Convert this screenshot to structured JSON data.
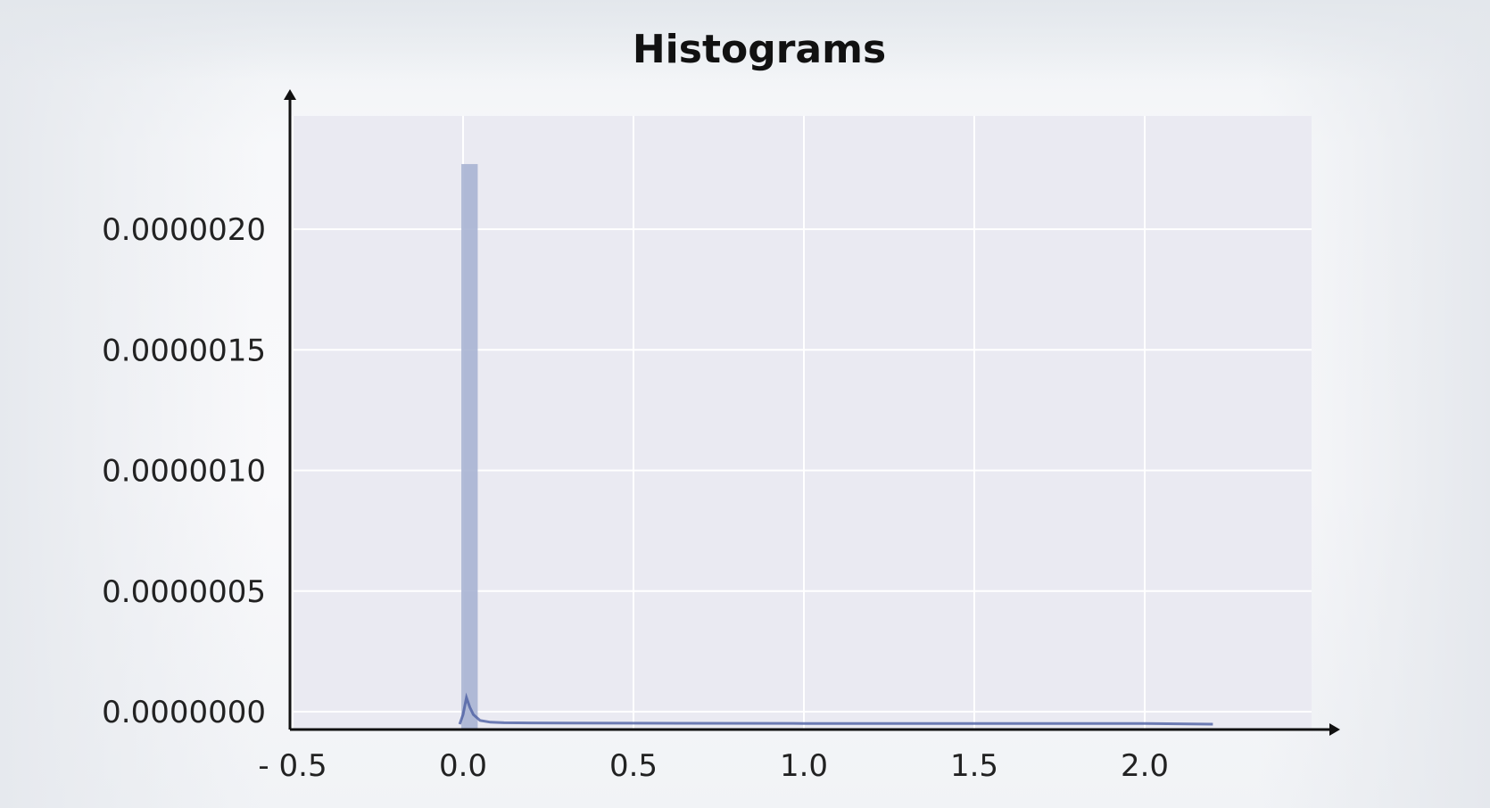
{
  "chart_data": {
    "type": "bar",
    "title": "Histograms",
    "xlabel": "",
    "ylabel": "",
    "x_ticks": [
      -0.5,
      0.0,
      0.5,
      1.0,
      1.5,
      2.0
    ],
    "x_tick_labels": [
      "- 0.5",
      "0.0",
      "0.5",
      "1.0",
      "1.5",
      "2.0"
    ],
    "y_ticks": [
      0.0,
      5e-07,
      1e-06,
      1.5e-06,
      2e-06
    ],
    "y_tick_labels": [
      "0.0000000",
      "0.0000005",
      "0.0000010",
      "0.0000015",
      "0.0000020"
    ],
    "xlim": [
      -0.5,
      2.55
    ],
    "ylim": [
      -7.5e-08,
      2.5e-06
    ],
    "grid": true,
    "bars": [
      {
        "x0": -0.005,
        "x1": 0.043,
        "value": 2.27e-06
      }
    ],
    "kde_curve": {
      "x": [
        -0.01,
        0.0,
        0.01,
        0.02,
        0.03,
        0.05,
        0.08,
        0.12,
        0.2,
        0.5,
        1.0,
        1.5,
        2.0,
        2.2
      ],
      "y": [
        0.0,
        4e-08,
        1.1e-07,
        7e-08,
        4e-08,
        1.5e-08,
        8e-09,
        6e-09,
        5e-09,
        4e-09,
        3e-09,
        3e-09,
        3e-09,
        0.0
      ]
    },
    "colors": {
      "plot_background": "#eaeaf2",
      "grid": "#ffffff",
      "bar": "#a9b4d3",
      "curve": "#4c5fa3",
      "axis": "#111111"
    }
  }
}
